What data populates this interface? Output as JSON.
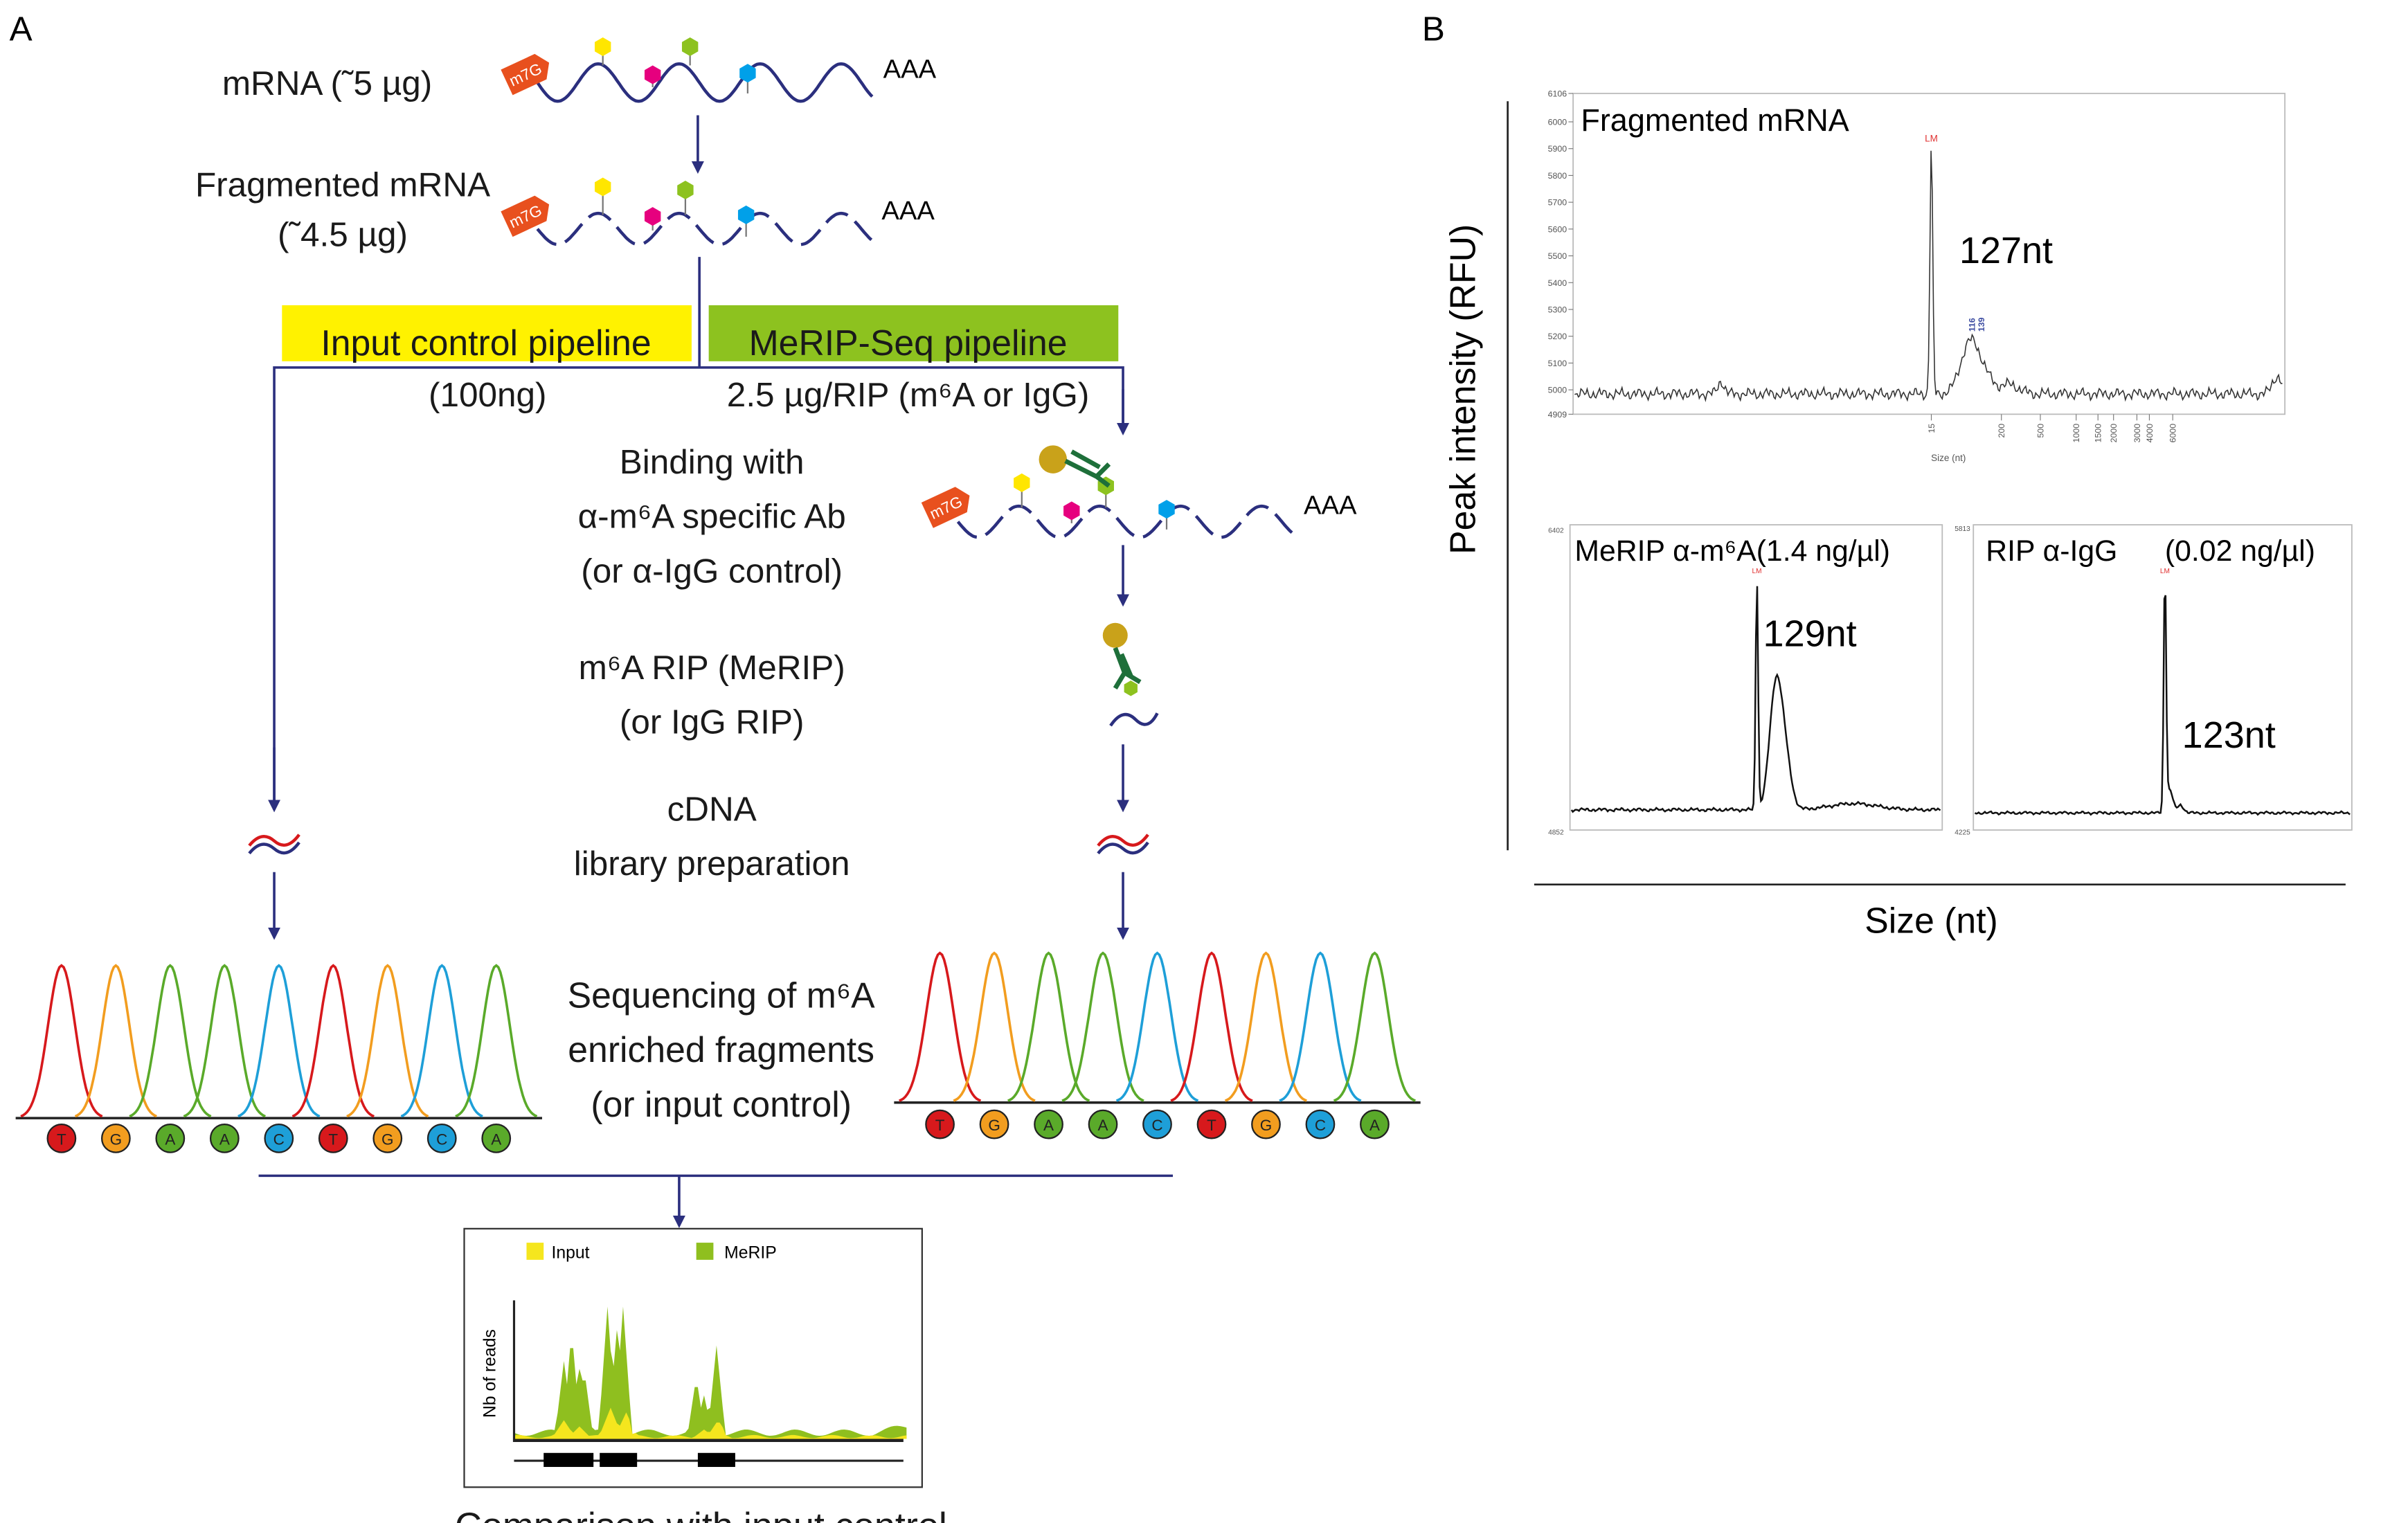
{
  "panel_labels": {
    "a": "A",
    "b": "B"
  },
  "panel_a": {
    "mrna_label": "mRNA (˜5 µg)",
    "cap_label": "m7G",
    "polya": "AAA",
    "fragmented_label_1": "Fragmented mRNA",
    "fragmented_label_2": "(˜4.5 µg)",
    "input_pipeline": "Input control pipeline",
    "merip_pipeline": "MeRIP-Seq pipeline",
    "input_amount": "(100ng)",
    "merip_amount": "2.5 µg/RIP (m⁶A or IgG)",
    "binding": [
      "Binding with",
      "α-m⁶A specific Ab",
      "(or α-IgG control)"
    ],
    "rip": [
      "m⁶A  RIP (MeRIP)",
      "(or IgG RIP)"
    ],
    "cdna": [
      "cDNA",
      "library preparation"
    ],
    "sequencing": [
      "Sequencing of m⁶A",
      "enriched fragments",
      "(or input control)"
    ],
    "sequence_left": [
      "T",
      "G",
      "A",
      "A",
      "C",
      "T",
      "G",
      "C",
      "A"
    ],
    "sequence_right": [
      "T",
      "G",
      "A",
      "A",
      "C",
      "T",
      "G",
      "C",
      "A"
    ],
    "base_colors": {
      "T": "#d7191c",
      "G": "#f29d1f",
      "A": "#5aaa2a",
      "C": "#1e9fd8"
    },
    "pipeline_colors": {
      "input": "#fff200",
      "merip": "#8dc21f"
    },
    "modification_colors": [
      "#ffe600",
      "#e6007e",
      "#8dc21f",
      "#00a0e9"
    ],
    "comparison": {
      "legend_input": "Input",
      "legend_merip": "MeRIP",
      "ylabel": "Nb of reads",
      "caption": "Comparison with input control",
      "colors": {
        "input": "#f5e61e",
        "merip": "#8fbf1f"
      }
    }
  },
  "panel_b": {
    "ylabel": "Peak intensity (RFU)",
    "xlabel": "Size (nt)",
    "top": {
      "title": "Fragmented mRNA",
      "peak_label": "127nt",
      "marker": "LM",
      "peak_annotations": [
        "116",
        "139"
      ],
      "yticks": [
        "4909",
        "5000",
        "5100",
        "5200",
        "5300",
        "5400",
        "5500",
        "5600",
        "5700",
        "5800",
        "5900",
        "6000",
        "6106"
      ],
      "xticks": [
        "15",
        "200",
        "500",
        "1000",
        "1500",
        "2000",
        "3000",
        "4000",
        "6000"
      ],
      "axis_label": "Size (nt)"
    },
    "bottom_left": {
      "title": "MeRIP α-m⁶A(1.4 ng/µl)",
      "peak_label": "129nt",
      "marker": "LM",
      "ymin": "4852",
      "ymax": "6402"
    },
    "bottom_right": {
      "title": "RIP α-IgG",
      "concentration": "(0.02 ng/µl)",
      "peak_label": "123nt",
      "marker": "LM",
      "ymin": "4225",
      "ymax": "5813"
    }
  }
}
